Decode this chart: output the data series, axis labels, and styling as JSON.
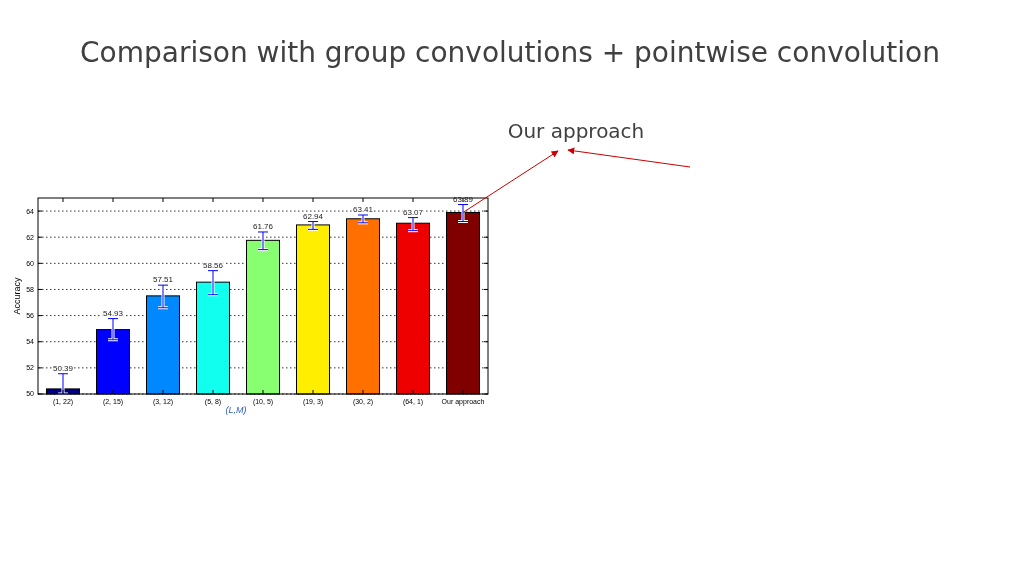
{
  "chart_data": {
    "type": "bar",
    "title": "Comparison with group convolutions + pointwise convolution",
    "xlabel": "(L,M)",
    "ylabel": "Accuracy",
    "categories": [
      "(1, 22)",
      "(2, 15)",
      "(3, 12)",
      "(5, 8)",
      "(10, 5)",
      "(19, 3)",
      "(30, 2)",
      "(64, 1)",
      "Our approach"
    ],
    "values": [
      50.39,
      54.93,
      57.51,
      58.56,
      61.76,
      62.94,
      63.41,
      63.07,
      63.89
    ],
    "colors": [
      "#000080",
      "#0000ff",
      "#0088ff",
      "#10ffee",
      "#88ff70",
      "#ffee00",
      "#ff7000",
      "#ee0000",
      "#800000"
    ],
    "errors": [
      [
        50,
        51.55
      ],
      [
        54.15,
        55.77
      ],
      [
        56.6,
        58.33
      ],
      [
        57.6,
        59.44
      ],
      [
        61.05,
        62.4
      ],
      [
        62.6,
        63.2
      ],
      [
        63.1,
        63.7
      ],
      [
        62.5,
        63.5
      ],
      [
        63.2,
        64.5
      ]
    ],
    "ylim": [
      50,
      65
    ],
    "yticks": [
      50,
      52,
      54,
      56,
      58,
      60,
      62,
      64
    ],
    "grid": "y",
    "data_labels": true,
    "annotations": [
      {
        "text": "Our approach",
        "x": "Our approach",
        "y": 63.89
      }
    ]
  }
}
